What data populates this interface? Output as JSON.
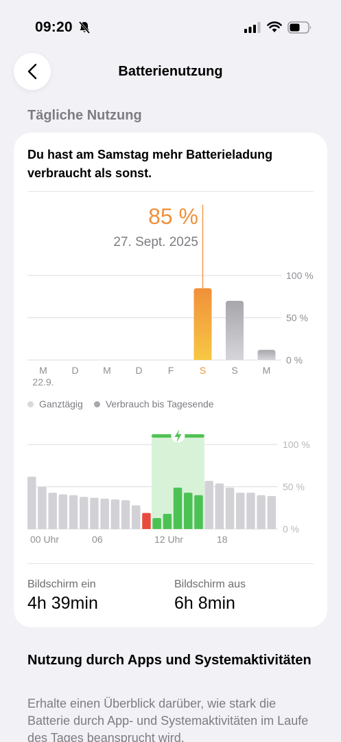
{
  "status_bar": {
    "time": "09:20",
    "icons": [
      "bell-slash-icon",
      "cellular-signal-icon",
      "wifi-icon",
      "battery-icon"
    ]
  },
  "nav": {
    "title": "Batterienutzung",
    "back_icon": "chevron-left-icon"
  },
  "section_title": "Tägliche Nutzung",
  "card": {
    "headline": "Du hast am Samstag mehr Batterieladung verbraucht als sonst.",
    "selected": {
      "value": "85 %",
      "date": "27. Sept. 2025"
    },
    "legend": [
      {
        "label": "Ganztägig",
        "color": "#d9d9dd"
      },
      {
        "label": "Verbrauch bis Tagesende",
        "color": "#a8a8ad"
      }
    ],
    "screen_on": {
      "label": "Bildschirm ein",
      "value": "4h 39min"
    },
    "screen_off": {
      "label": "Bildschirm aus",
      "value": "6h 8min"
    }
  },
  "chart_data": [
    {
      "type": "bar",
      "title": "",
      "categories": [
        "M",
        "D",
        "M",
        "D",
        "F",
        "S",
        "S",
        "M"
      ],
      "first_date_label": "22.9.",
      "values": [
        0,
        0,
        0,
        0,
        0,
        85,
        70,
        12
      ],
      "selected_index": 5,
      "y_ticks": [
        "100 %",
        "50 %",
        "0 %"
      ],
      "ylim": [
        0,
        100
      ],
      "colors": {
        "selected_top": "#f0903a",
        "selected_bottom": "#f7c843",
        "bar": "#b0b0b5",
        "selected_label": "#f0903a"
      }
    },
    {
      "type": "bar",
      "title": "",
      "x_tick_labels": [
        "00 Uhr",
        "06",
        "12 Uhr",
        "18"
      ],
      "values": [
        62,
        50,
        43,
        41,
        40,
        38,
        37,
        36,
        35,
        34,
        28,
        19,
        13,
        18,
        49,
        43,
        40,
        57,
        54,
        49,
        43,
        43,
        40,
        39
      ],
      "charging_range": [
        12,
        16
      ],
      "low_battery_index": 11,
      "y_ticks": [
        "100 %",
        "50 %",
        "0 %"
      ],
      "ylim": [
        0,
        100
      ],
      "colors": {
        "bar": "#d2d2d6",
        "low": "#e84a3f",
        "charging": "#52c255",
        "charging_band": "#d8f2d8",
        "charging_bar": "#4cc254"
      }
    }
  ],
  "apps_section": {
    "title": "Nutzung durch Apps und System­aktivitäten",
    "description": "Erhalte einen Überblick darüber, wie stark die Batterie durch App- und Systemaktivitäten im Laufe des Tages beansprucht wird."
  }
}
